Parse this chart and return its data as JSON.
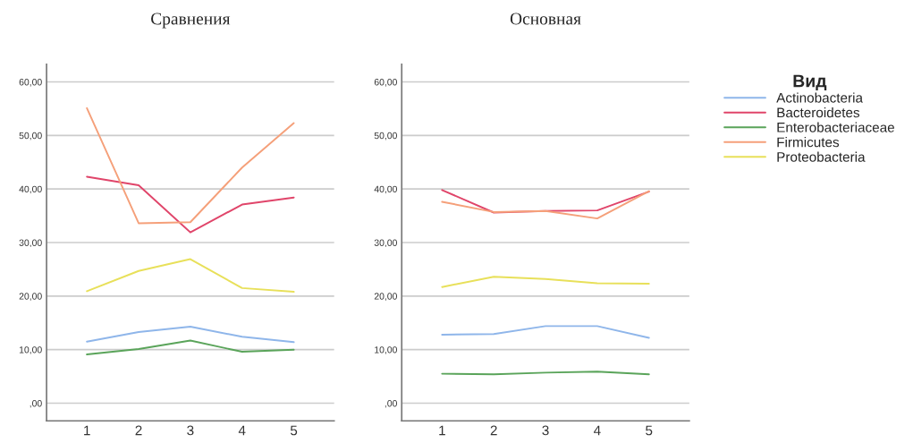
{
  "chart_data": [
    {
      "type": "line",
      "title": "Сравнения",
      "x": [
        1,
        2,
        3,
        4,
        5
      ],
      "xlim": [
        0.22,
        5.78
      ],
      "xticks": [
        1,
        2,
        3,
        4,
        5
      ],
      "ylim": [
        -3.3,
        63.3
      ],
      "yticks": [
        {
          "value": 0,
          "label": ",00"
        },
        {
          "value": 10,
          "label": "10,00"
        },
        {
          "value": 20,
          "label": "20,00"
        },
        {
          "value": 30,
          "label": "30,00"
        },
        {
          "value": 40,
          "label": "40,00"
        },
        {
          "value": 50,
          "label": "50,00"
        },
        {
          "value": 60,
          "label": "60,00"
        }
      ],
      "grid": "y",
      "legend": "right",
      "legend_title": "Вид",
      "series": [
        {
          "name": "Actinobacteria",
          "color": "#8fb6ea",
          "values": [
            11.5,
            13.3,
            14.3,
            12.4,
            11.4
          ]
        },
        {
          "name": "Bacteroidetes",
          "color": "#e0456a",
          "values": [
            42.3,
            40.7,
            31.9,
            37.1,
            38.4
          ]
        },
        {
          "name": "Enterobacteriaceae",
          "color": "#5aa45a",
          "values": [
            9.1,
            10.1,
            11.7,
            9.6,
            10.0
          ]
        },
        {
          "name": "Firmicutes",
          "color": "#f5a07a",
          "values": [
            55.1,
            33.6,
            33.8,
            44.0,
            52.3
          ]
        },
        {
          "name": "Proteobacteria",
          "color": "#e8e05a",
          "values": [
            20.9,
            24.7,
            26.9,
            21.5,
            20.8
          ]
        }
      ]
    },
    {
      "type": "line",
      "title": "Основная",
      "x": [
        1,
        2,
        3,
        4,
        5
      ],
      "xlim": [
        0.22,
        5.78
      ],
      "xticks": [
        1,
        2,
        3,
        4,
        5
      ],
      "ylim": [
        -3.3,
        63.3
      ],
      "yticks": [
        {
          "value": 0,
          "label": ",00"
        },
        {
          "value": 10,
          "label": "10,00"
        },
        {
          "value": 20,
          "label": "20,00"
        },
        {
          "value": 30,
          "label": "30,00"
        },
        {
          "value": 40,
          "label": "40,00"
        },
        {
          "value": 50,
          "label": "50,00"
        },
        {
          "value": 60,
          "label": "60,00"
        }
      ],
      "grid": "y",
      "series": [
        {
          "color": "#8fb6ea",
          "values": [
            12.8,
            12.9,
            14.4,
            14.4,
            12.2
          ]
        },
        {
          "color": "#e0456a",
          "values": [
            39.8,
            35.6,
            35.9,
            36.0,
            39.5
          ]
        },
        {
          "color": "#5aa45a",
          "values": [
            5.5,
            5.4,
            5.7,
            5.9,
            5.4
          ]
        },
        {
          "color": "#f5a07a",
          "values": [
            37.6,
            35.7,
            35.9,
            34.5,
            39.6
          ]
        },
        {
          "color": "#e8e05a",
          "values": [
            21.7,
            23.6,
            23.2,
            22.4,
            22.3
          ]
        }
      ]
    }
  ]
}
